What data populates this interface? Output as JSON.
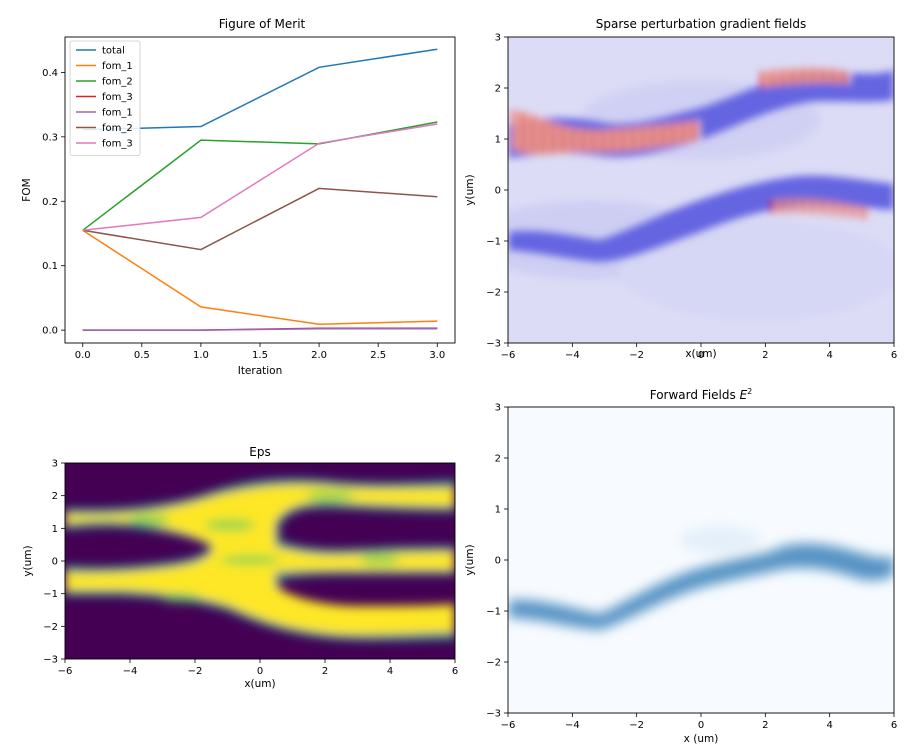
{
  "chart_data": [
    {
      "type": "line",
      "title": "Figure of Merit",
      "xlabel": "Iteration",
      "ylabel": "FOM",
      "xlim": [
        -0.15,
        3.15
      ],
      "ylim": [
        -0.02,
        0.455
      ],
      "xticks": [
        0.0,
        0.5,
        1.0,
        1.5,
        2.0,
        2.5,
        3.0
      ],
      "xtick_labels": [
        "0.0",
        "0.5",
        "1.0",
        "1.5",
        "2.0",
        "2.5",
        "3.0"
      ],
      "yticks": [
        0.0,
        0.1,
        0.2,
        0.3,
        0.4
      ],
      "ytick_labels": [
        "0.0",
        "0.1",
        "0.2",
        "0.3",
        "0.4"
      ],
      "legend_position": "top-left",
      "x": [
        0,
        1,
        2,
        3
      ],
      "series": [
        {
          "name": "total",
          "color": "#1f77b4",
          "values": [
            0.311,
            0.316,
            0.408,
            0.436
          ]
        },
        {
          "name": "fom_1",
          "color": "#ff7f0e",
          "values": [
            0.155,
            0.036,
            0.009,
            0.014
          ]
        },
        {
          "name": "fom_2",
          "color": "#2ca02c",
          "values": [
            0.155,
            0.295,
            0.289,
            0.323
          ]
        },
        {
          "name": "fom_3",
          "color": "#d62728",
          "values": [
            0.0,
            0.0,
            0.003,
            0.003
          ]
        },
        {
          "name": "fom_1",
          "color": "#9467bd",
          "values": [
            0.0,
            0.0,
            0.002,
            0.002
          ]
        },
        {
          "name": "fom_2",
          "color": "#8c564b",
          "values": [
            0.155,
            0.125,
            0.22,
            0.207
          ]
        },
        {
          "name": "fom_3",
          "color": "#e377c2",
          "values": [
            0.155,
            0.175,
            0.29,
            0.32
          ]
        }
      ]
    },
    {
      "type": "heatmap",
      "title": "Sparse perturbation gradient fields",
      "xlabel": "x(um)",
      "ylabel": "y(um)",
      "colormap": "bwr",
      "xlim": [
        -6,
        6
      ],
      "ylim": [
        -3,
        3
      ],
      "xticks": [
        -6,
        -4,
        -2,
        0,
        2,
        4,
        6
      ],
      "xtick_labels": [
        "−6",
        "−4",
        "−2",
        "0",
        "2",
        "4",
        "6"
      ],
      "yticks": [
        -3,
        -2,
        -1,
        0,
        1,
        2,
        3
      ],
      "ytick_labels": [
        "−3",
        "−2",
        "−1",
        "0",
        "1",
        "2",
        "3"
      ]
    },
    {
      "type": "heatmap",
      "title": "Eps",
      "xlabel": "x(um)",
      "ylabel": "y(um)",
      "colormap": "viridis",
      "xlim": [
        -6,
        6
      ],
      "ylim": [
        -3,
        3
      ],
      "xticks": [
        -6,
        -4,
        -2,
        0,
        2,
        4,
        6
      ],
      "xtick_labels": [
        "−6",
        "−4",
        "−2",
        "0",
        "2",
        "4",
        "6"
      ],
      "yticks": [
        -3,
        -2,
        -1,
        0,
        1,
        2,
        3
      ],
      "ytick_labels": [
        "−3",
        "−2",
        "−1",
        "0",
        "1",
        "2",
        "3"
      ]
    },
    {
      "type": "heatmap",
      "title": "Forward Fields E²",
      "title_base": "Forward Fields ",
      "title_var": "E",
      "title_exp": "2",
      "xlabel": "x (um)",
      "ylabel": "y(um)",
      "colormap": "Blues",
      "xlim": [
        -6,
        6
      ],
      "ylim": [
        -3,
        3
      ],
      "xticks": [
        -6,
        -4,
        -2,
        0,
        2,
        4,
        6
      ],
      "xtick_labels": [
        "−6",
        "−4",
        "−2",
        "0",
        "2",
        "4",
        "6"
      ],
      "yticks": [
        -3,
        -2,
        -1,
        0,
        1,
        2,
        3
      ],
      "ytick_labels": [
        "−3",
        "−2",
        "−1",
        "0",
        "1",
        "2",
        "3"
      ]
    }
  ]
}
